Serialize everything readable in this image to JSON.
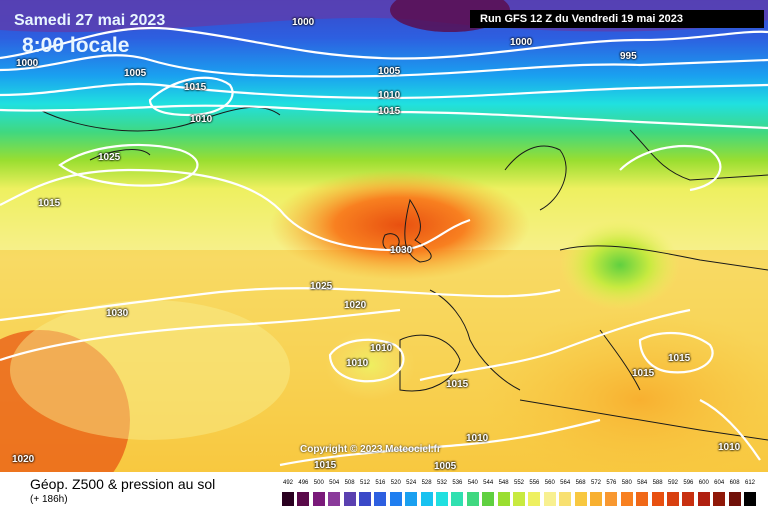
{
  "header": {
    "date": "Samedi 27 mai 2023",
    "time": "8:00 locale",
    "run": "Run GFS 12 Z du Vendredi 19 mai 2023"
  },
  "copyright": "Copyright © 2023 Meteociel.fr",
  "footer": {
    "title": "Géop. Z500 & pression au sol",
    "subtitle": "(+ 186h)"
  },
  "legend": {
    "ticks": [
      "492",
      "496",
      "500",
      "504",
      "508",
      "512",
      "516",
      "520",
      "524",
      "528",
      "532",
      "536",
      "540",
      "544",
      "548",
      "552",
      "556",
      "560",
      "564",
      "568",
      "572",
      "576",
      "580",
      "584",
      "588",
      "592",
      "596",
      "600",
      "604",
      "608",
      "612"
    ],
    "colors": [
      "#2a0020",
      "#5a0a4a",
      "#7a1a7a",
      "#8a3a9a",
      "#5a40b0",
      "#3a48c8",
      "#2d5fe0",
      "#1f7ef0",
      "#1aa0f0",
      "#18c2f0",
      "#20e0e0",
      "#30e0b0",
      "#40d880",
      "#60d040",
      "#9ade30",
      "#c8ea40",
      "#eef060",
      "#f8f090",
      "#f8e070",
      "#f8c840",
      "#f8b030",
      "#f89830",
      "#f88020",
      "#f06818",
      "#e85010",
      "#d84010",
      "#c83010",
      "#b02010",
      "#901808",
      "#701008",
      "#000000"
    ]
  },
  "isobars": [
    "1000",
    "1000",
    "1005",
    "1015",
    "1010",
    "1000",
    "995",
    "1005",
    "1010",
    "1015",
    "1025",
    "1015",
    "1030",
    "1025",
    "1020",
    "1030",
    "1010",
    "1010",
    "1015",
    "1010",
    "1015",
    "1005",
    "1020",
    "1015",
    "1015",
    "1010"
  ],
  "colors": {
    "isobar": "#ffffff",
    "banner": "#000000"
  }
}
